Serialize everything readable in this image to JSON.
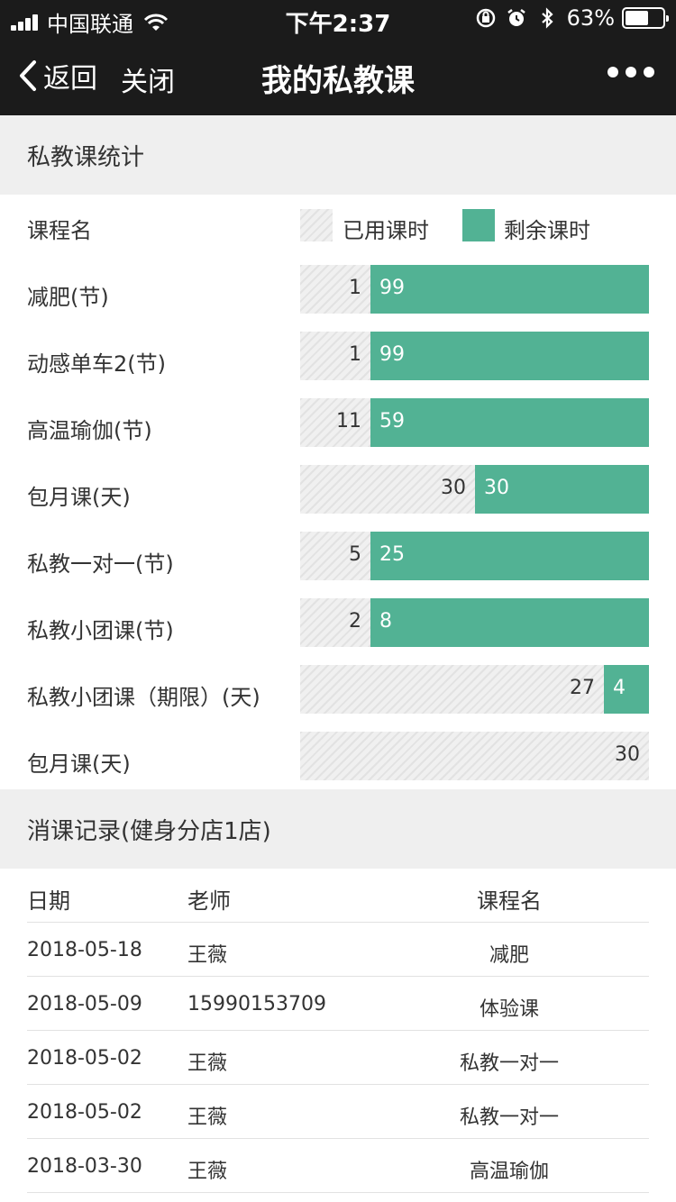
{
  "status": {
    "carrier": "中国联通",
    "time": "下午2:37",
    "battery": "63%",
    "battery_level": 0.63
  },
  "nav": {
    "back_label": "返回",
    "close_label": "关闭",
    "title": "我的私教课"
  },
  "stats": {
    "section_title": "私教课统计",
    "column_label": "课程名",
    "legend_used": "已用课时",
    "legend_remaining": "剩余课时",
    "colors": {
      "used": "#f0f0f0",
      "remaining": "#52b294"
    },
    "rows": [
      {
        "name": "减肥(节)",
        "used": "1",
        "remaining": "99"
      },
      {
        "name": "动感单车2(节)",
        "used": "1",
        "remaining": "99"
      },
      {
        "name": "高温瑜伽(节)",
        "used": "11",
        "remaining": "59"
      },
      {
        "name": "包月课(天)",
        "used": "30",
        "remaining": "30"
      },
      {
        "name": "私教一对一(节)",
        "used": "5",
        "remaining": "25"
      },
      {
        "name": "私教小团课(节)",
        "used": "2",
        "remaining": "8"
      },
      {
        "name": "私教小团课（期限）(天)",
        "used": "27",
        "remaining": "4"
      },
      {
        "name": "包月课(天)",
        "used": "30",
        "remaining": ""
      }
    ]
  },
  "records": {
    "section_title": "消课记录(健身分店1店)",
    "headers": {
      "date": "日期",
      "teacher": "老师",
      "course": "课程名"
    },
    "rows": [
      {
        "date": "2018-05-18",
        "teacher": "王薇",
        "course": "减肥"
      },
      {
        "date": "2018-05-09",
        "teacher": "15990153709",
        "course": "体验课"
      },
      {
        "date": "2018-05-02",
        "teacher": "王薇",
        "course": "私教一对一"
      },
      {
        "date": "2018-05-02",
        "teacher": "王薇",
        "course": "私教一对一"
      },
      {
        "date": "2018-03-30",
        "teacher": "王薇",
        "course": "高温瑜伽"
      }
    ]
  }
}
